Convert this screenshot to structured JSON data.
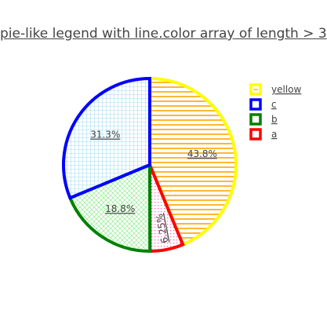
{
  "chart_data": {
    "type": "pie",
    "title": "pie-like legend with line.color array of length > 3",
    "slices": [
      {
        "label": "yellow",
        "value": 43.8,
        "text": "43.8%",
        "line_color": "#ffff00",
        "pattern_color": "#ffa500",
        "pattern": "horizontal"
      },
      {
        "label": "a",
        "value": 6.25,
        "text": "6.25%",
        "line_color": "#ff0000",
        "pattern_color": "#ff69b4",
        "pattern": "dots"
      },
      {
        "label": "b",
        "value": 18.8,
        "text": "18.8%",
        "line_color": "#008000",
        "pattern_color": "#90ee90",
        "pattern": "crosshatch-diagonal"
      },
      {
        "label": "c",
        "value": 31.3,
        "text": "31.3%",
        "line_color": "#0000ff",
        "pattern_color": "#87ceeb",
        "pattern": "grid"
      }
    ],
    "legend": {
      "position": "top-right",
      "entries": [
        {
          "label": "yellow",
          "color": "#ffff00"
        },
        {
          "label": "c",
          "color": "#0000ff"
        },
        {
          "label": "b",
          "color": "#008000"
        },
        {
          "label": "a",
          "color": "#ff0000"
        }
      ]
    }
  }
}
